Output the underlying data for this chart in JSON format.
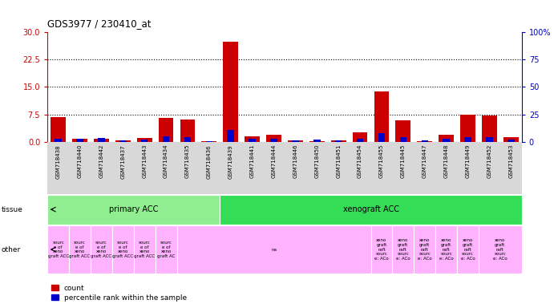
{
  "title": "GDS3977 / 230410_at",
  "samples": [
    "GSM718438",
    "GSM718440",
    "GSM718442",
    "GSM718437",
    "GSM718443",
    "GSM718434",
    "GSM718435",
    "GSM718436",
    "GSM718439",
    "GSM718441",
    "GSM718444",
    "GSM718446",
    "GSM718450",
    "GSM718451",
    "GSM718454",
    "GSM718455",
    "GSM718445",
    "GSM718447",
    "GSM718448",
    "GSM718449",
    "GSM718452",
    "GSM718453"
  ],
  "count": [
    6.8,
    0.9,
    0.9,
    0.4,
    1.0,
    6.5,
    6.1,
    0.1,
    27.5,
    1.5,
    1.9,
    0.4,
    0.2,
    0.3,
    2.5,
    13.8,
    5.8,
    0.2,
    2.0,
    7.5,
    7.2,
    1.3
  ],
  "percentile": [
    3.0,
    2.5,
    3.5,
    1.5,
    2.0,
    5.0,
    4.0,
    0.5,
    11.0,
    2.5,
    2.5,
    1.5,
    2.0,
    1.5,
    3.0,
    7.5,
    4.0,
    1.0,
    3.0,
    4.5,
    4.5,
    2.0
  ],
  "ylim_left": [
    0,
    30
  ],
  "ylim_right": [
    0,
    100
  ],
  "yticks_left": [
    0,
    7.5,
    15,
    22.5,
    30
  ],
  "yticks_right": [
    0,
    25,
    50,
    75,
    100
  ],
  "tissue_groups": [
    {
      "label": "primary ACC",
      "start": 0,
      "end": 8,
      "color": "#90EE90"
    },
    {
      "label": "xenograft ACC",
      "start": 8,
      "end": 22,
      "color": "#33DD55"
    }
  ],
  "other_groups": [
    {
      "label": "sourc\ne of\nxeno\ngraft ACC",
      "start": 0,
      "end": 1
    },
    {
      "label": "sourc\ne of\nxeno\ngraft ACC",
      "start": 1,
      "end": 2
    },
    {
      "label": "sourc\ne of\nxeno\ngraft ACC",
      "start": 2,
      "end": 3
    },
    {
      "label": "sourc\ne of\nxeno\ngraft ACC",
      "start": 3,
      "end": 4
    },
    {
      "label": "sourc\ne of\nxeno\ngraft ACC",
      "start": 4,
      "end": 5
    },
    {
      "label": "sourc\ne of\nxeno\ngraft AC",
      "start": 5,
      "end": 6
    },
    {
      "label": "na",
      "start": 6,
      "end": 15
    },
    {
      "label": "xeno\ngraft\nraft\nsourc\ne: ACo",
      "start": 15,
      "end": 16
    },
    {
      "label": "xeno\ngraft\nraft\nsourc\ne: ACo",
      "start": 16,
      "end": 17
    },
    {
      "label": "xeno\ngraft\nraft\nsourc\ne: ACo",
      "start": 17,
      "end": 18
    },
    {
      "label": "xeno\ngraft\nraft\nsourc\ne: ACo",
      "start": 18,
      "end": 19
    },
    {
      "label": "xeno\ngraft\nraft\nsourc\ne: ACo",
      "start": 19,
      "end": 20
    },
    {
      "label": "xeno\ngraft\nraft\nsourc\ne: ACo",
      "start": 20,
      "end": 22
    }
  ],
  "other_color": "#FFB3FF",
  "bar_width": 0.7,
  "count_color": "#CC0000",
  "percentile_color": "#0000CC",
  "bg_color": "#FFFFFF",
  "grid_color": "#000000",
  "tick_color_left": "#CC0000",
  "tick_color_right": "#0000BB",
  "n_samples": 22
}
